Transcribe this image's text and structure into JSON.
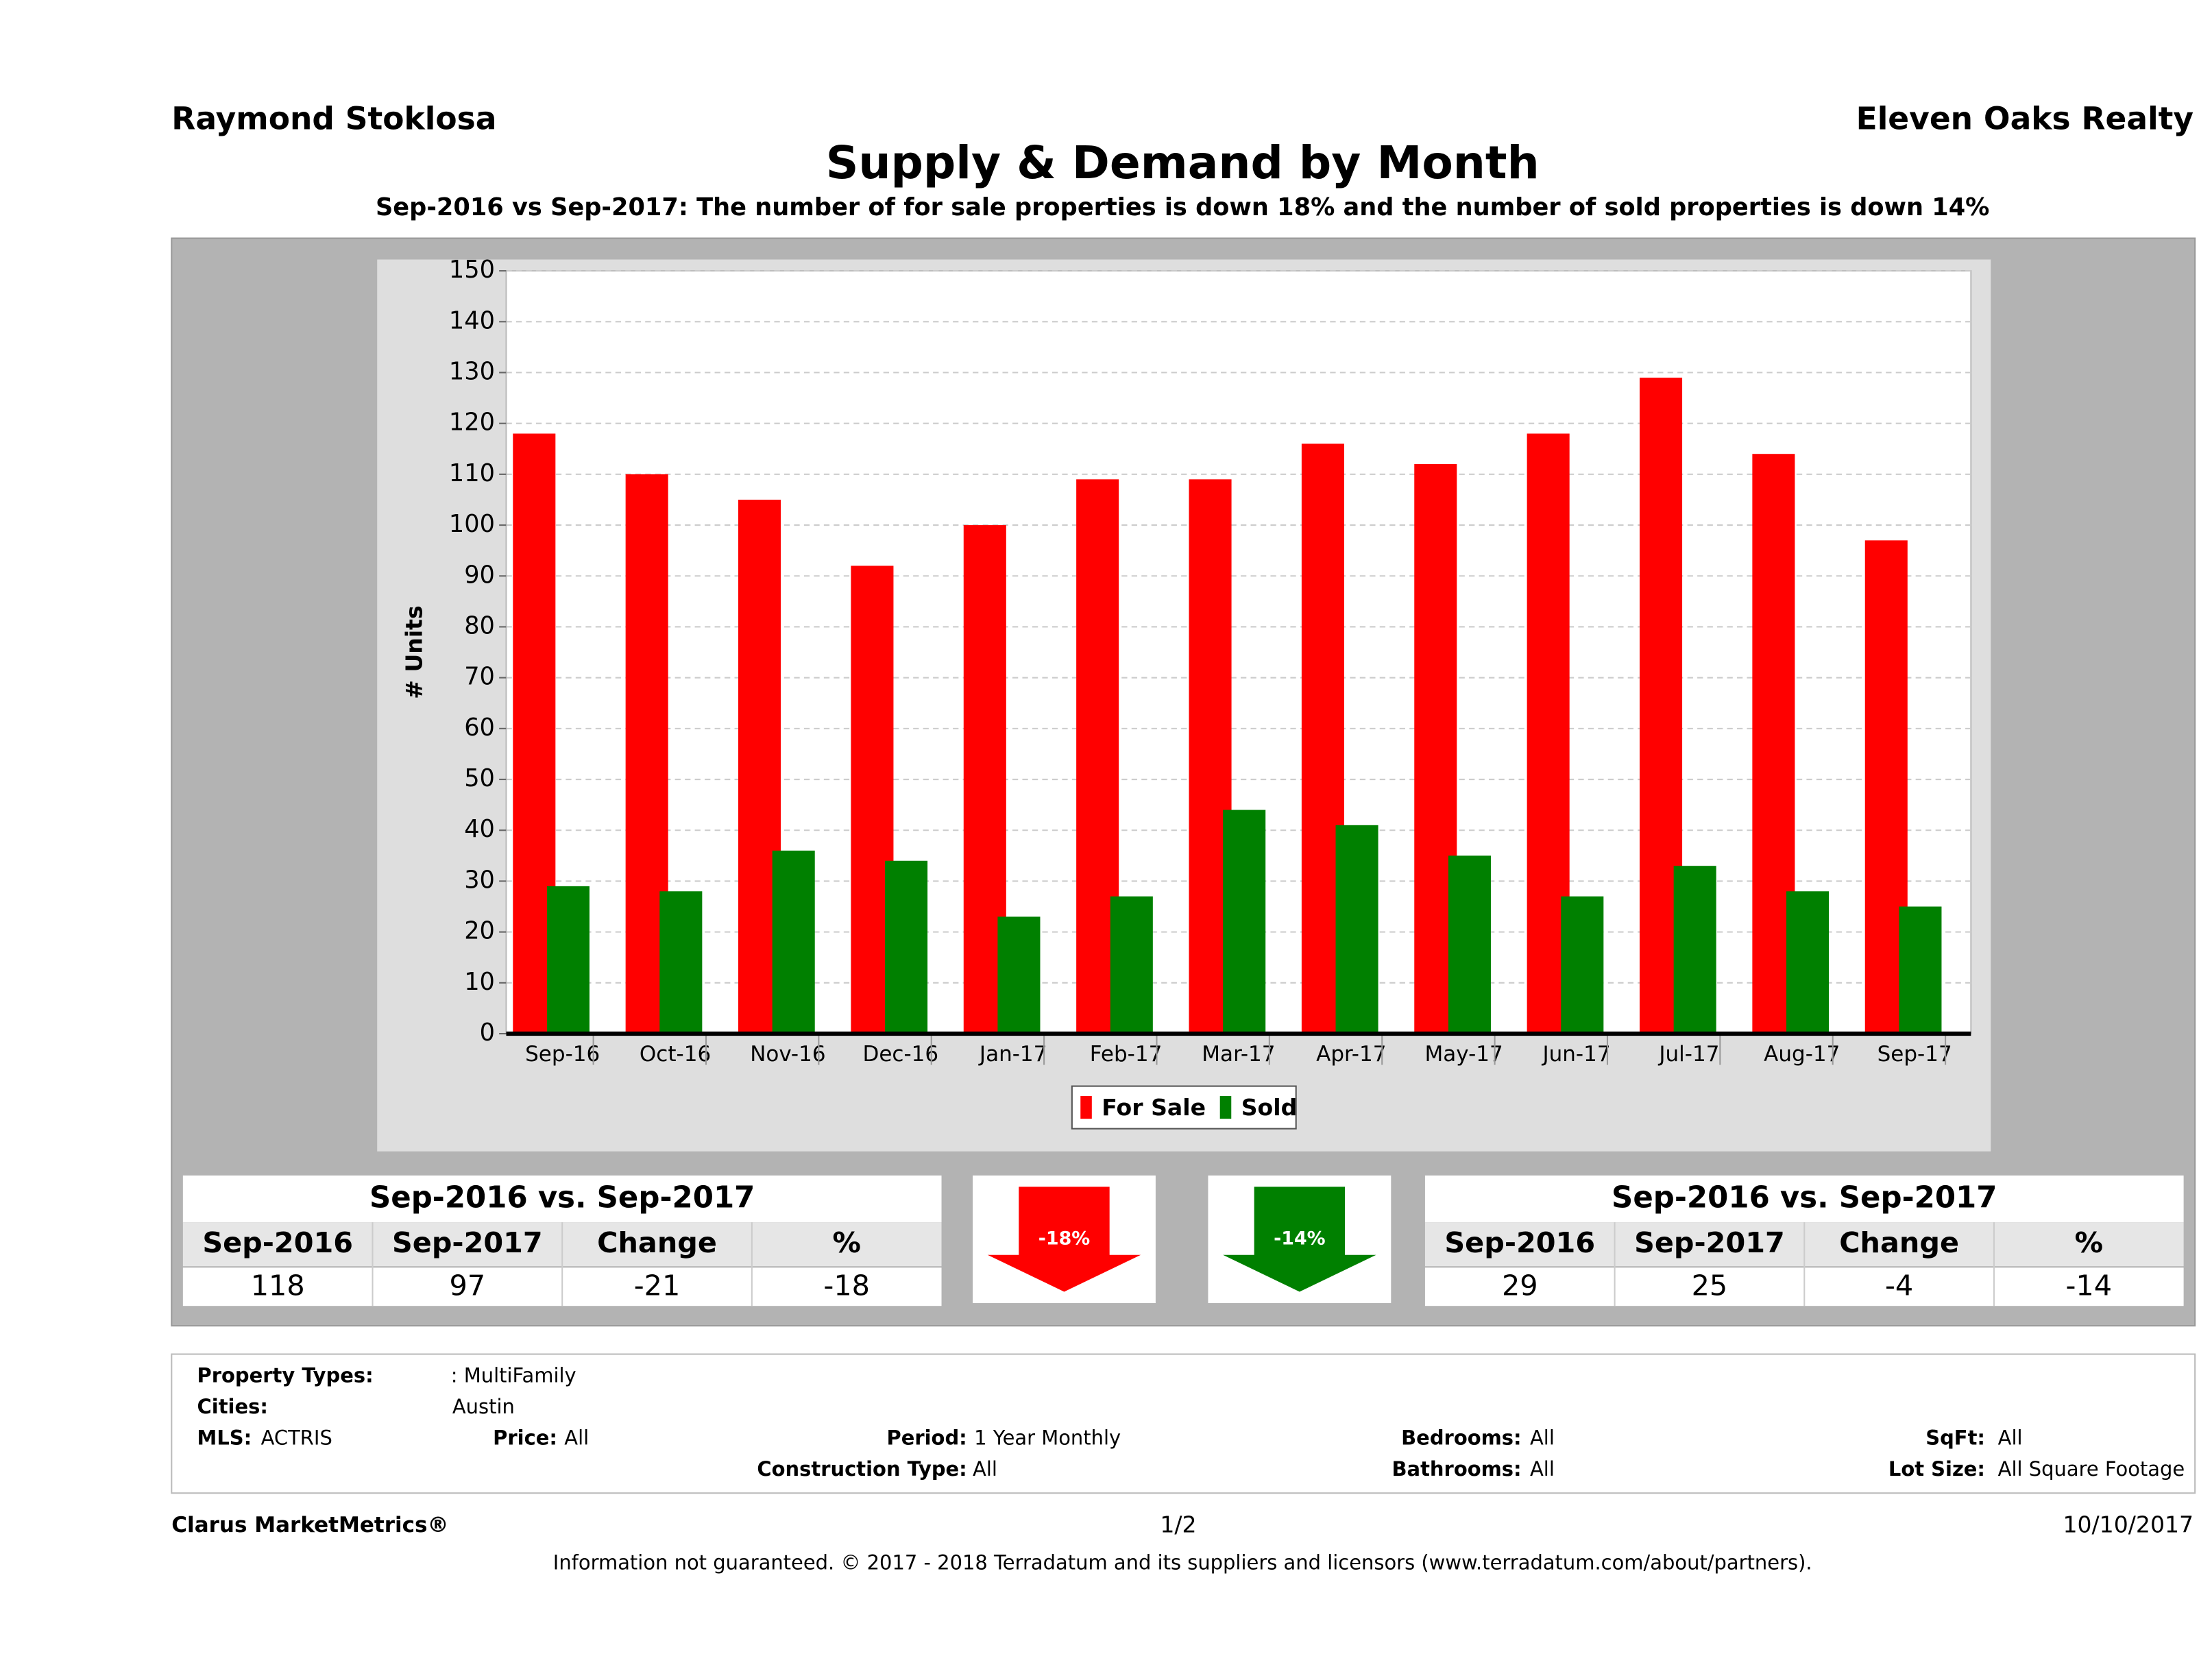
{
  "header": {
    "agent": "Raymond Stoklosa",
    "company": "Eleven Oaks Realty"
  },
  "chart_data": {
    "type": "bar",
    "title": "Supply & Demand by Month",
    "subtitle": "Sep-2016 vs Sep-2017: The number of for sale properties is down 18% and the number of sold properties is down 14%",
    "y_label": "# Units",
    "categories": [
      "Sep-16",
      "Oct-16",
      "Nov-16",
      "Dec-16",
      "Jan-17",
      "Feb-17",
      "Mar-17",
      "Apr-17",
      "May-17",
      "Jun-17",
      "Jul-17",
      "Aug-17",
      "Sep-17"
    ],
    "series": [
      {
        "name": "For Sale",
        "color": "#ff0000",
        "values": [
          118,
          110,
          105,
          92,
          100,
          109,
          109,
          116,
          112,
          118,
          129,
          114,
          97
        ]
      },
      {
        "name": "Sold",
        "color": "#008000",
        "values": [
          29,
          28,
          36,
          34,
          23,
          27,
          44,
          41,
          35,
          27,
          33,
          28,
          25
        ]
      }
    ],
    "ylim": [
      0,
      150
    ],
    "yticks": [
      0,
      10,
      20,
      30,
      40,
      50,
      60,
      70,
      80,
      90,
      100,
      110,
      120,
      130,
      140,
      150
    ],
    "grid": true,
    "legend": "bottom"
  },
  "summary": [
    {
      "title": "Sep-2016 vs. Sep-2017",
      "headers": [
        "Sep-2016",
        "Sep-2017",
        "Change",
        "%"
      ],
      "values": [
        118,
        97,
        -21,
        -18
      ]
    },
    {
      "title": "Sep-2016 vs. Sep-2017",
      "headers": [
        "Sep-2016",
        "Sep-2017",
        "Change",
        "%"
      ],
      "values": [
        29,
        25,
        -4,
        -14
      ]
    }
  ],
  "arrows": [
    {
      "label": "-18%",
      "color": "#ff0000"
    },
    {
      "label": "-14%",
      "color": "#008000"
    }
  ],
  "filters": [
    {
      "label": "Property Types:",
      "value": ": MultiFamily"
    },
    {
      "label": "Cities:",
      "value": "Austin"
    },
    {
      "label": "MLS:",
      "value": "ACTRIS"
    },
    {
      "label": "Price:",
      "value": "All"
    },
    {
      "label": "Period:",
      "value": "1 Year Monthly"
    },
    {
      "label": "Bedrooms:",
      "value": "All"
    },
    {
      "label": "SqFt:",
      "value": "All"
    },
    {
      "label": "Construction Type:",
      "value": "All"
    },
    {
      "label": "Bathrooms:",
      "value": "All"
    },
    {
      "label": "Lot Size:",
      "value": "All Square Footage"
    }
  ],
  "footer": {
    "brand": "Clarus MarketMetrics®",
    "page": "1/2",
    "date": "10/10/2017",
    "disclaimer": "Information not guaranteed. © 2017 - 2018 Terradatum and its suppliers and licensors (www.terradatum.com/about/partners)."
  }
}
